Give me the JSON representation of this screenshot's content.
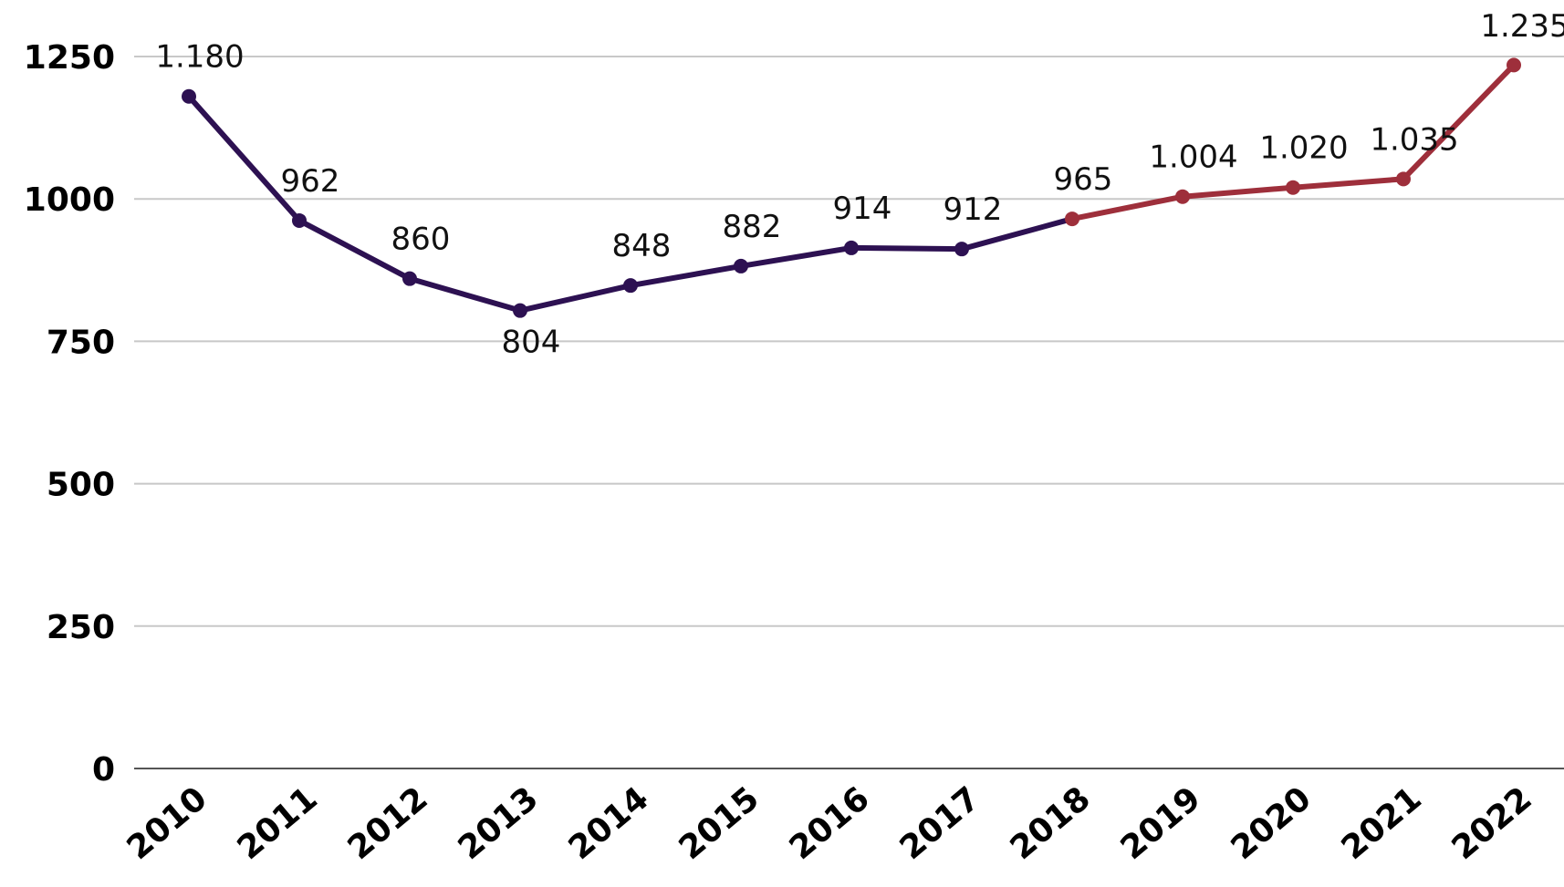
{
  "chart_data": {
    "type": "line",
    "title": "",
    "xlabel": "",
    "ylabel": "",
    "categories": [
      "2010",
      "2011",
      "2012",
      "2013",
      "2014",
      "2015",
      "2016",
      "2017",
      "2018",
      "2019",
      "2020",
      "2021",
      "2022"
    ],
    "values": [
      1180,
      962,
      860,
      804,
      848,
      882,
      914,
      912,
      965,
      1004,
      1020,
      1035,
      1235
    ],
    "data_labels": [
      "1.180",
      "962",
      "860",
      "804",
      "848",
      "882",
      "914",
      "912",
      "965",
      "1.004",
      "1.020",
      "1.035",
      "1.235"
    ],
    "label_position": [
      "above",
      "above",
      "above",
      "below",
      "above",
      "above",
      "above",
      "above",
      "above",
      "above",
      "above",
      "above",
      "above"
    ],
    "ylim": [
      0,
      1250
    ],
    "yticks": [
      0,
      250,
      500,
      750,
      1000,
      1250
    ],
    "ytick_labels": [
      "0",
      "250",
      "500",
      "750",
      "1000",
      "1250"
    ],
    "grid": true,
    "legend": "none",
    "line_colors": {
      "first_segment": "#2d1152",
      "second_segment": "#9e2f3b"
    },
    "color_change_at_category": "2018",
    "gridline_color": "#c8c8c8",
    "axis_line_color": "#555555"
  }
}
